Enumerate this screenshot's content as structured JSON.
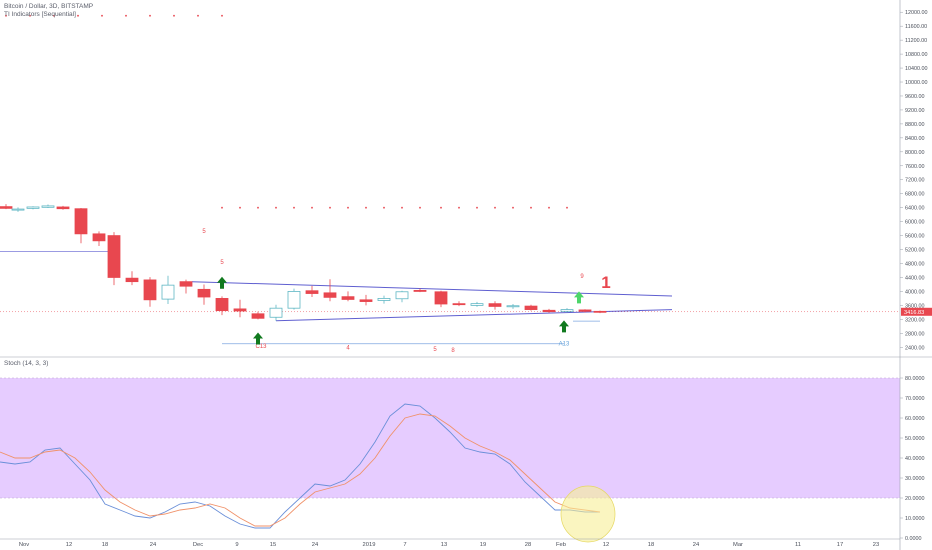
{
  "header": {
    "symbol": "Bitcoin / Dollar, 3D, BITSTAMP",
    "indicator": "TI Indicators [Sequential]",
    "stoch_label": "Stoch (14, 3, 3)"
  },
  "colors": {
    "bull_candle": "#5fb7c4",
    "bear_candle": "#e8474f",
    "trendline": "#5f5fd0",
    "seq_mark": "#e8474f",
    "arrow_green": "#117a1f",
    "arrow_light_green": "#4cd56a",
    "stoch_k": "#6a8fd8",
    "stoch_d": "#f0926a",
    "stoch_band": "#e6ccff",
    "highlight_ellipse": "#f6ef96"
  },
  "chart_data": [
    {
      "type": "candlestick",
      "title": "Bitcoin / Dollar, 3D, BITSTAMP",
      "price_axis": {
        "ticks": [
          2400,
          2800,
          3200,
          3600,
          4000,
          4400,
          4800,
          5200,
          5600,
          6000,
          6400,
          6800,
          7200,
          7600,
          8000,
          8400,
          8800,
          9200,
          9600,
          10000,
          10400,
          10800,
          11200,
          11600,
          12000
        ],
        "tick_labels": [
          "2400.00",
          "2800.00",
          "3200.00",
          "3600.00",
          "4000.00",
          "4400.00",
          "4800.00",
          "5200.00",
          "5600.00",
          "6000.00",
          "6400.00",
          "6800.00",
          "7200.00",
          "7600.00",
          "8000.00",
          "8400.00",
          "8800.00",
          "9200.00",
          "9600.00",
          "10000.00",
          "10400.00",
          "10800.00",
          "11200.00",
          "11600.00",
          "12000.00"
        ],
        "range": [
          2150,
          12350
        ],
        "last_price_label": "3416.83",
        "last_price": 3417
      },
      "time_axis": {
        "labels": [
          {
            "t": 8,
            "text": "Nov"
          },
          {
            "t": 23,
            "text": "12"
          },
          {
            "t": 35,
            "text": "18"
          },
          {
            "t": 51,
            "text": "24"
          },
          {
            "t": 66,
            "text": "Dec"
          },
          {
            "t": 79,
            "text": "9"
          },
          {
            "t": 91,
            "text": "15"
          },
          {
            "t": 105,
            "text": "24"
          },
          {
            "t": 123,
            "text": "2019"
          },
          {
            "t": 135,
            "text": "7"
          },
          {
            "t": 148,
            "text": "13"
          },
          {
            "t": 161,
            "text": "19"
          },
          {
            "t": 176,
            "text": "28"
          },
          {
            "t": 187,
            "text": "Feb"
          },
          {
            "t": 202,
            "text": "12"
          },
          {
            "t": 217,
            "text": "18"
          },
          {
            "t": 232,
            "text": "24"
          },
          {
            "t": 246,
            "text": "Mar"
          },
          {
            "t": 266,
            "text": "11"
          },
          {
            "t": 280,
            "text": "17"
          },
          {
            "t": 292,
            "text": "23"
          }
        ],
        "range": [
          0,
          300
        ]
      },
      "candles": [
        {
          "t": 2,
          "o": 6430,
          "h": 6500,
          "l": 6360,
          "c": 6380
        },
        {
          "t": 6,
          "o": 6330,
          "h": 6410,
          "l": 6280,
          "c": 6360
        },
        {
          "t": 11,
          "o": 6380,
          "h": 6440,
          "l": 6350,
          "c": 6420
        },
        {
          "t": 16,
          "o": 6410,
          "h": 6490,
          "l": 6390,
          "c": 6450
        },
        {
          "t": 21,
          "o": 6420,
          "h": 6450,
          "l": 6340,
          "c": 6370
        },
        {
          "t": 27,
          "o": 6370,
          "h": 6390,
          "l": 5380,
          "c": 5650
        },
        {
          "t": 33,
          "o": 5650,
          "h": 5720,
          "l": 5300,
          "c": 5450
        },
        {
          "t": 38,
          "o": 5600,
          "h": 5700,
          "l": 4180,
          "c": 4400
        },
        {
          "t": 44,
          "o": 4380,
          "h": 4580,
          "l": 4180,
          "c": 4280
        },
        {
          "t": 50,
          "o": 4330,
          "h": 4410,
          "l": 3560,
          "c": 3760
        },
        {
          "t": 56,
          "o": 3780,
          "h": 4450,
          "l": 3640,
          "c": 4180
        },
        {
          "t": 62,
          "o": 4280,
          "h": 4340,
          "l": 3940,
          "c": 4150
        },
        {
          "t": 68,
          "o": 4060,
          "h": 4200,
          "l": 3620,
          "c": 3840
        },
        {
          "t": 74,
          "o": 3800,
          "h": 3860,
          "l": 3320,
          "c": 3450
        },
        {
          "t": 80,
          "o": 3500,
          "h": 3760,
          "l": 3260,
          "c": 3440
        },
        {
          "t": 86,
          "o": 3360,
          "h": 3420,
          "l": 3200,
          "c": 3230
        },
        {
          "t": 92,
          "o": 3260,
          "h": 3620,
          "l": 3160,
          "c": 3520
        },
        {
          "t": 98,
          "o": 3520,
          "h": 4080,
          "l": 3480,
          "c": 4000
        },
        {
          "t": 104,
          "o": 4020,
          "h": 4160,
          "l": 3840,
          "c": 3940
        },
        {
          "t": 110,
          "o": 3960,
          "h": 4350,
          "l": 3720,
          "c": 3830
        },
        {
          "t": 116,
          "o": 3850,
          "h": 4000,
          "l": 3720,
          "c": 3770
        },
        {
          "t": 122,
          "o": 3760,
          "h": 3900,
          "l": 3600,
          "c": 3710
        },
        {
          "t": 128,
          "o": 3740,
          "h": 3880,
          "l": 3650,
          "c": 3800
        },
        {
          "t": 134,
          "o": 3790,
          "h": 4020,
          "l": 3690,
          "c": 3990
        },
        {
          "t": 140,
          "o": 4030,
          "h": 4080,
          "l": 3980,
          "c": 4000
        },
        {
          "t": 147,
          "o": 3990,
          "h": 4020,
          "l": 3550,
          "c": 3640
        },
        {
          "t": 153,
          "o": 3650,
          "h": 3720,
          "l": 3580,
          "c": 3620
        },
        {
          "t": 159,
          "o": 3600,
          "h": 3700,
          "l": 3560,
          "c": 3650
        },
        {
          "t": 165,
          "o": 3650,
          "h": 3720,
          "l": 3480,
          "c": 3570
        },
        {
          "t": 171,
          "o": 3560,
          "h": 3640,
          "l": 3500,
          "c": 3590
        },
        {
          "t": 177,
          "o": 3580,
          "h": 3620,
          "l": 3450,
          "c": 3480
        },
        {
          "t": 183,
          "o": 3460,
          "h": 3500,
          "l": 3390,
          "c": 3420
        },
        {
          "t": 189,
          "o": 3430,
          "h": 3520,
          "l": 3400,
          "c": 3480
        },
        {
          "t": 195,
          "o": 3470,
          "h": 3490,
          "l": 3400,
          "c": 3430
        },
        {
          "t": 200,
          "o": 3430,
          "h": 3450,
          "l": 3380,
          "c": 3417
        }
      ],
      "lines": [
        {
          "name": "",
          "points": [
            [
              64,
              4280
            ],
            [
              224,
              3870
            ]
          ]
        },
        {
          "name": "",
          "points": [
            [
              92,
              3160
            ],
            [
              224,
              3480
            ]
          ]
        }
      ],
      "level_lines": [
        {
          "price": 5150,
          "t0": 0,
          "t1": 37
        },
        {
          "price": 2500,
          "t0": 74,
          "t1": 188
        },
        {
          "price": 3150,
          "t0": 191,
          "t1": 200
        }
      ],
      "annotations": [
        {
          "text": "5",
          "t": 74,
          "p": 4780
        },
        {
          "text": "5",
          "t": 68,
          "p": 5670
        },
        {
          "text": "9",
          "t": 194,
          "p": 4390
        },
        {
          "text": "1",
          "t": 202,
          "p": 4100
        },
        {
          "text": "C13",
          "t": 87,
          "p": 2380
        },
        {
          "text": "4",
          "t": 116,
          "p": 2330
        },
        {
          "text": "5",
          "t": 145,
          "p": 2290
        },
        {
          "text": "8",
          "t": 151,
          "p": 2270
        },
        {
          "text": "A13",
          "t": 188,
          "p": 2450
        }
      ],
      "up_arrows": [
        {
          "t": 74,
          "p": 4250,
          "style": "dark"
        },
        {
          "t": 86,
          "p": 2650,
          "style": "dark"
        },
        {
          "t": 188,
          "p": 3000,
          "style": "dark"
        },
        {
          "t": 193,
          "p": 3830,
          "style": "light"
        }
      ],
      "sequential_dots": [
        {
          "p": 11900,
          "t": [
            2,
            10,
            18,
            26,
            34,
            42,
            50,
            58,
            66,
            74
          ]
        },
        {
          "p": 6400,
          "t": [
            74,
            80,
            86,
            92,
            98,
            104,
            110,
            116,
            122,
            128,
            134,
            140,
            147,
            153,
            159,
            165,
            171,
            177,
            183,
            189
          ]
        }
      ]
    },
    {
      "type": "line",
      "title": "Stoch (14, 3, 3)",
      "y_axis": {
        "ticks": [
          0,
          10,
          20,
          30,
          40,
          50,
          60,
          70,
          80
        ],
        "tick_labels": [
          "0.0000",
          "10.0000",
          "20.0000",
          "30.0000",
          "40.0000",
          "50.0000",
          "60.0000",
          "70.0000",
          "80.0000"
        ],
        "range": [
          0,
          88
        ]
      },
      "band": {
        "from": 20,
        "to": 80
      },
      "x": [
        0,
        5,
        10,
        15,
        20,
        25,
        30,
        35,
        40,
        45,
        50,
        55,
        60,
        65,
        70,
        75,
        80,
        85,
        90,
        95,
        100,
        105,
        110,
        115,
        120,
        125,
        130,
        135,
        140,
        145,
        150,
        155,
        160,
        165,
        170,
        175,
        180,
        185,
        190,
        195,
        200
      ],
      "series": [
        {
          "name": "",
          "values": [
            38,
            37,
            38,
            44,
            45,
            37,
            29,
            17,
            14,
            11,
            10,
            13,
            17,
            18,
            16,
            11,
            7,
            5,
            5,
            13,
            20,
            27,
            26,
            29,
            37,
            48,
            61,
            67,
            66,
            60,
            53,
            45,
            43,
            42,
            37,
            28,
            21,
            14,
            14,
            13,
            13
          ]
        },
        {
          "name": "",
          "values": [
            43,
            40,
            40,
            43,
            44,
            40,
            33,
            24,
            18,
            14,
            11,
            12,
            14,
            15,
            17,
            15,
            10,
            6,
            6,
            10,
            17,
            23,
            25,
            27,
            32,
            40,
            51,
            60,
            62,
            61,
            56,
            50,
            46,
            43,
            39,
            32,
            25,
            18,
            15,
            14,
            13
          ]
        }
      ],
      "highlight": {
        "t": 196,
        "v": 12,
        "rt": 9,
        "rv": 14
      }
    }
  ]
}
